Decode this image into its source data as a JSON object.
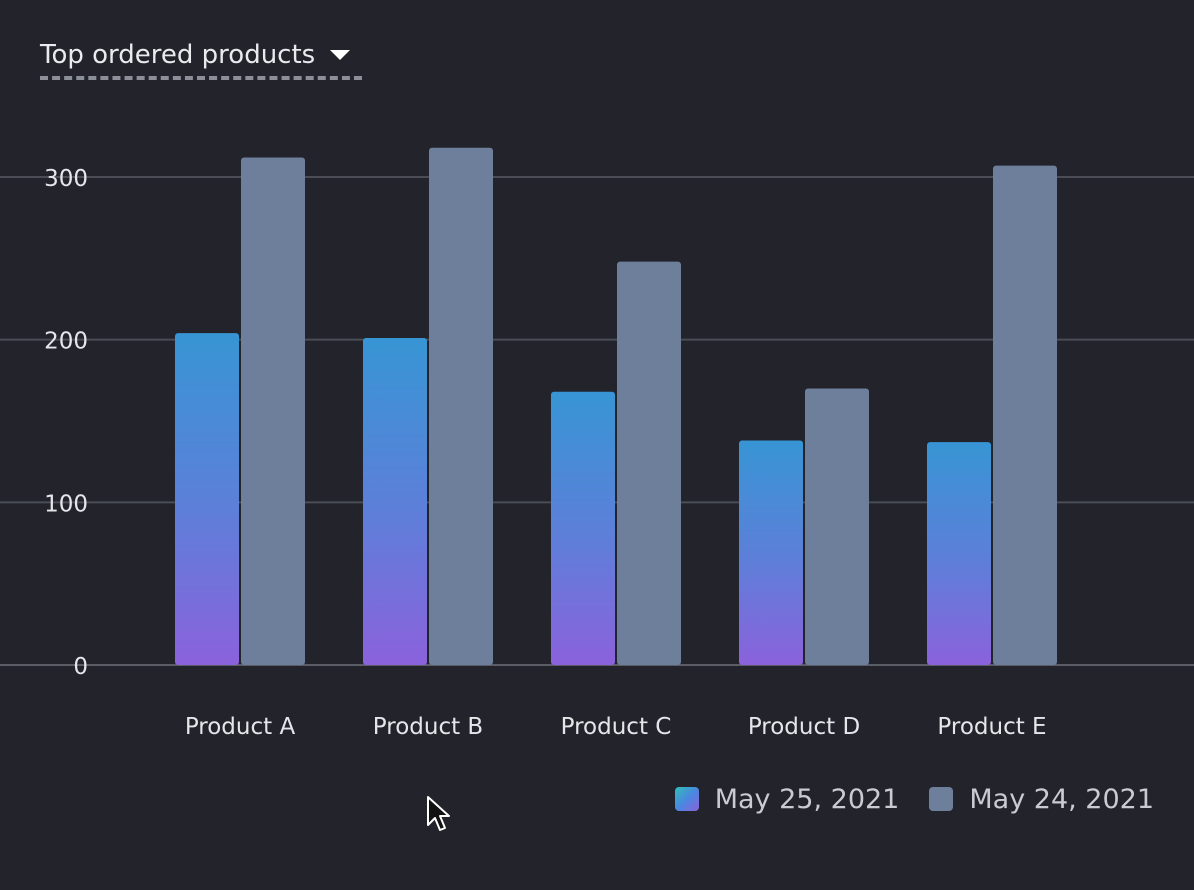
{
  "header": {
    "title": "Top ordered products"
  },
  "icons": {
    "dropdown": "caret-down-icon",
    "pointer": "mouse-pointer-icon"
  },
  "colors": {
    "background": "#22232b",
    "gridline": "#4a4c56",
    "axis_text": "#e6e6ea",
    "series_gradient_top": "#3795d4",
    "series_gradient_bottom": "#8b62dc",
    "series_gray": "#6e7f9c"
  },
  "legend": {
    "items": [
      {
        "label": "May 25, 2021",
        "swatch": "gradient"
      },
      {
        "label": "May 24, 2021",
        "swatch": "gray"
      }
    ]
  },
  "chart_data": {
    "type": "bar",
    "title": "Top ordered products",
    "xlabel": "",
    "ylabel": "",
    "categories": [
      "Product A",
      "Product B",
      "Product C",
      "Product D",
      "Product E"
    ],
    "series": [
      {
        "name": "May 25, 2021",
        "values": [
          204,
          201,
          168,
          138,
          137
        ]
      },
      {
        "name": "May 24, 2021",
        "values": [
          312,
          318,
          248,
          170,
          307
        ]
      }
    ],
    "ylim": [
      0,
      300
    ],
    "yticks": [
      0,
      100,
      200,
      300
    ],
    "grid": true,
    "legend_position": "bottom-right"
  }
}
